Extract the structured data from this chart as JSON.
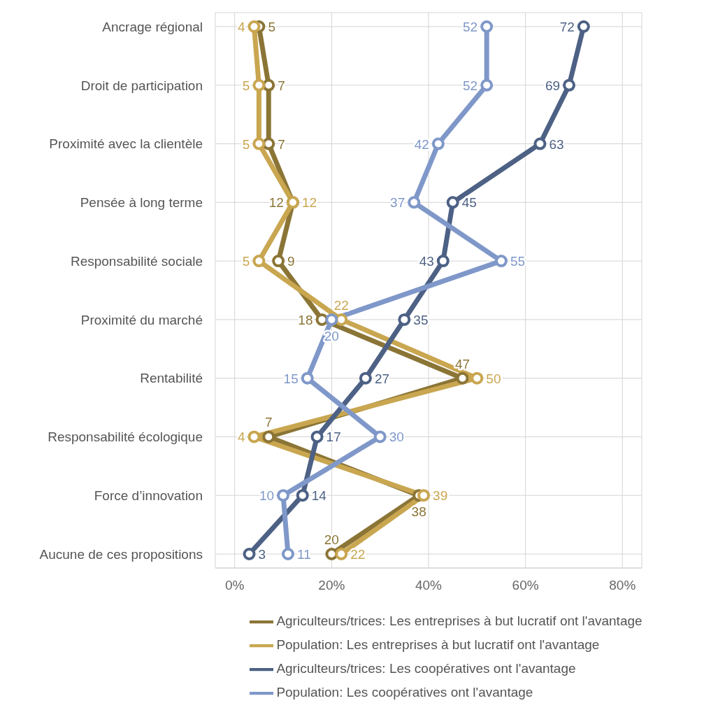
{
  "chart_data": {
    "type": "line",
    "orientation": "horizontal",
    "categories": [
      "Ancrage régional",
      "Droit de participation",
      "Proximité avec la clientèle",
      "Pensée à long terme",
      "Responsabilité sociale",
      "Proximité du marché",
      "Rentabilité",
      "Responsabilité écologique",
      "Force d’innovation",
      "Aucune de ces propositions"
    ],
    "series": [
      {
        "name": "Agriculteurs/trices: Les entreprises à but lucratif ont l'avantage",
        "color": "#8b7536",
        "values": [
          5,
          7,
          7,
          12,
          9,
          18,
          47,
          7,
          38,
          20
        ]
      },
      {
        "name": "Population: Les entreprises à but lucratif ont l'avantage",
        "color": "#c9a650",
        "values": [
          4,
          5,
          5,
          12,
          5,
          22,
          50,
          4,
          39,
          22
        ]
      },
      {
        "name": "Agriculteurs/trices: Les coopératives ont l'avantage",
        "color": "#4d6185",
        "values": [
          72,
          69,
          63,
          45,
          43,
          35,
          27,
          17,
          14,
          3
        ]
      },
      {
        "name": "Population: Les coopératives ont l'avantage",
        "color": "#7f98c9",
        "values": [
          52,
          52,
          42,
          37,
          55,
          20,
          15,
          30,
          10,
          11
        ]
      }
    ],
    "xlim": [
      -4,
      84
    ],
    "xticks": [
      {
        "value": 0,
        "label": "0%"
      },
      {
        "value": 20,
        "label": "20%"
      },
      {
        "value": 40,
        "label": "40%"
      },
      {
        "value": 60,
        "label": "60%"
      },
      {
        "value": 80,
        "label": "80%"
      }
    ],
    "grid": true,
    "legend": "bottom",
    "marker": "circle",
    "line_style": "solid",
    "data_labels": true
  }
}
